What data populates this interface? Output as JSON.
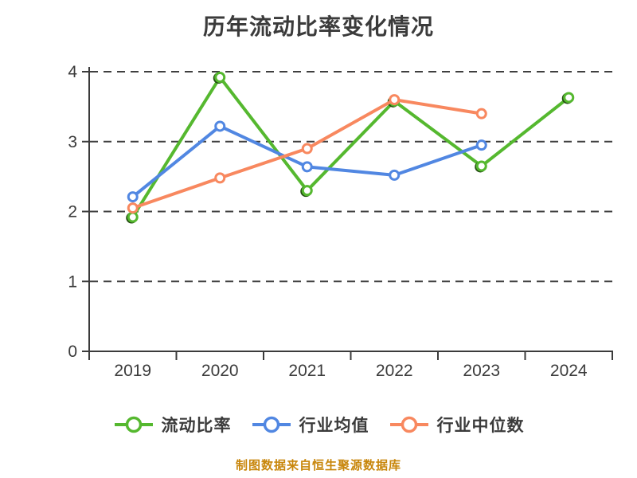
{
  "title": "历年流动比率变化情况",
  "footer_note": "制图数据来自恒生聚源数据库",
  "colors": {
    "text": "#3b3b3b",
    "axis": "#3b3b3b",
    "gridline": "#3f3f3f",
    "footer_text": "#c8860b",
    "marker_fill": "#ffffff",
    "marker_dark_edge": "#234d12"
  },
  "chart_data": {
    "type": "line",
    "title": "历年流动比率变化情况",
    "categories": [
      "2019",
      "2020",
      "2021",
      "2022",
      "2023",
      "2024"
    ],
    "series": [
      {
        "name": "流动比率",
        "color": "#55b82f",
        "values": [
          1.92,
          3.92,
          2.3,
          3.58,
          2.65,
          3.63
        ]
      },
      {
        "name": "行业均值",
        "color": "#5187e2",
        "values": [
          2.21,
          3.22,
          2.64,
          2.52,
          2.95,
          null
        ]
      },
      {
        "name": "行业中位数",
        "color": "#f8885f",
        "values": [
          2.05,
          2.48,
          2.9,
          3.6,
          3.4,
          null
        ]
      }
    ],
    "xlabel": "",
    "ylabel": "",
    "ylim": [
      0,
      4
    ],
    "yticks": [
      0,
      1,
      2,
      3,
      4
    ],
    "grid": "horizontal-dashed",
    "legend_position": "bottom",
    "marker_style": "circle-white-fill"
  },
  "legend": {
    "items": [
      {
        "label": "流动比率",
        "color": "#55b82f"
      },
      {
        "label": "行业均值",
        "color": "#5187e2"
      },
      {
        "label": "行业中位数",
        "color": "#f8885f"
      }
    ]
  }
}
